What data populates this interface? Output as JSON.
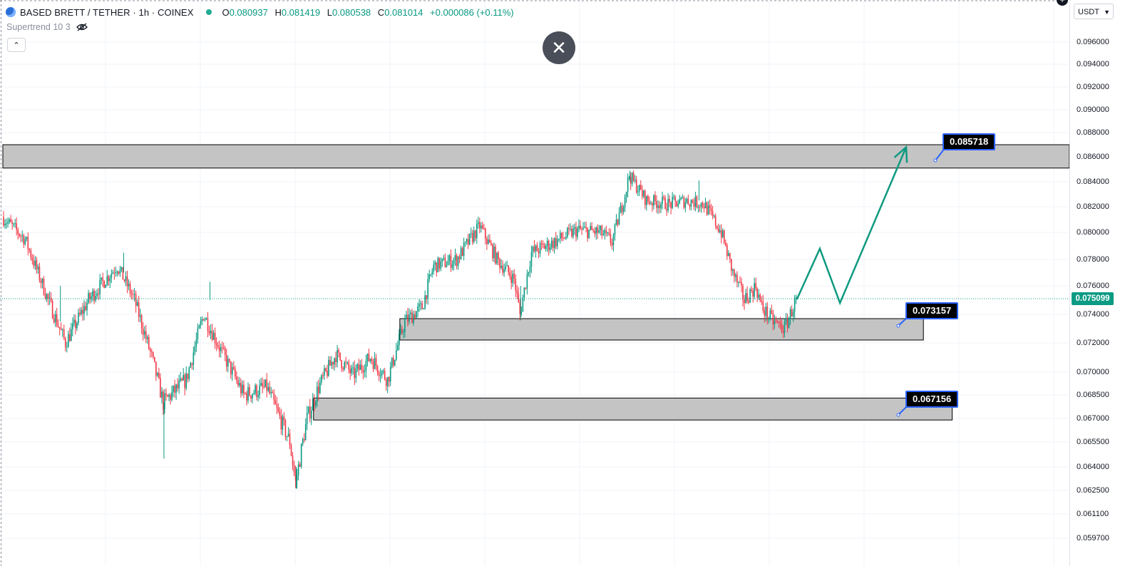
{
  "header": {
    "symbol_title": "BASED BRETT / TETHER · 1h · COINEX",
    "ohlc": {
      "open_key": "O",
      "open": "0.080937",
      "high_key": "H",
      "high": "0.081419",
      "low_key": "L",
      "low": "0.080538",
      "close_key": "C",
      "close": "0.081014",
      "change": "+0.000086 (+0.11%)"
    },
    "indicator": "Supertrend 10 3",
    "currency": "USDT"
  },
  "colors": {
    "up": "#089981",
    "down": "#f23645",
    "zone_fill": "#c4c4c4",
    "arrow": "#0e9a80",
    "label_border": "#2962ff",
    "last_price": "#0b9b84"
  },
  "icons": [
    "coin-logo-icon",
    "eye-off-icon",
    "chevron-up-icon",
    "close-icon",
    "chevron-down-icon",
    "plus-icon"
  ],
  "chart_data": {
    "type": "candlestick",
    "timeframe": "1h",
    "y_ticks": [
      "0.096000",
      "0.094000",
      "0.092000",
      "0.090000",
      "0.088000",
      "0.086000",
      "0.084000",
      "0.082000",
      "0.080000",
      "0.078000",
      "0.076000",
      "0.074000",
      "0.072000",
      "0.070000",
      "0.068500",
      "0.067000",
      "0.065500",
      "0.064000",
      "0.062500",
      "0.061100",
      "0.059700"
    ],
    "last_price": "0.075099",
    "grid": true,
    "zones": [
      {
        "label": "0.085718",
        "top": 0.087,
        "bottom": 0.0851,
        "x_start": 0,
        "x_end": 195
      },
      {
        "label": "0.073157",
        "top": 0.0737,
        "bottom": 0.0722,
        "x_start": 69,
        "x_end": 160
      },
      {
        "label": "0.067156",
        "top": 0.0683,
        "bottom": 0.0669,
        "x_start": 54,
        "x_end": 165
      }
    ],
    "projection": [
      {
        "x": 138,
        "price": 0.07505
      },
      {
        "x": 142,
        "price": 0.0788
      },
      {
        "x": 145.5,
        "price": 0.0748
      },
      {
        "x": 157,
        "price": 0.0868
      }
    ],
    "candle_anchors": [
      {
        "x": 0,
        "price": 0.0812
      },
      {
        "x": 4,
        "price": 0.0795
      },
      {
        "x": 8,
        "price": 0.075
      },
      {
        "x": 11,
        "price": 0.072
      },
      {
        "x": 15,
        "price": 0.075
      },
      {
        "x": 20,
        "price": 0.0775
      },
      {
        "x": 23,
        "price": 0.075
      },
      {
        "x": 26,
        "price": 0.071
      },
      {
        "x": 28,
        "price": 0.068
      },
      {
        "x": 32,
        "price": 0.0695
      },
      {
        "x": 35,
        "price": 0.074
      },
      {
        "x": 38,
        "price": 0.0715
      },
      {
        "x": 42,
        "price": 0.0685
      },
      {
        "x": 46,
        "price": 0.069
      },
      {
        "x": 50,
        "price": 0.0655
      },
      {
        "x": 51,
        "price": 0.063
      },
      {
        "x": 53,
        "price": 0.067
      },
      {
        "x": 55,
        "price": 0.069
      },
      {
        "x": 58,
        "price": 0.0712
      },
      {
        "x": 61,
        "price": 0.0698
      },
      {
        "x": 64,
        "price": 0.071
      },
      {
        "x": 67,
        "price": 0.0695
      },
      {
        "x": 70,
        "price": 0.0735
      },
      {
        "x": 73,
        "price": 0.0745
      },
      {
        "x": 75,
        "price": 0.0775
      },
      {
        "x": 79,
        "price": 0.078
      },
      {
        "x": 83,
        "price": 0.0805
      },
      {
        "x": 86,
        "price": 0.078
      },
      {
        "x": 89,
        "price": 0.0765
      },
      {
        "x": 90,
        "price": 0.074
      },
      {
        "x": 92,
        "price": 0.0785
      },
      {
        "x": 96,
        "price": 0.0793
      },
      {
        "x": 100,
        "price": 0.0802
      },
      {
        "x": 104,
        "price": 0.08
      },
      {
        "x": 106,
        "price": 0.0793
      },
      {
        "x": 108,
        "price": 0.0825
      },
      {
        "x": 109,
        "price": 0.0845
      },
      {
        "x": 112,
        "price": 0.0825
      },
      {
        "x": 116,
        "price": 0.0822
      },
      {
        "x": 119,
        "price": 0.0825
      },
      {
        "x": 122,
        "price": 0.0822
      },
      {
        "x": 125,
        "price": 0.08
      },
      {
        "x": 127,
        "price": 0.077
      },
      {
        "x": 129,
        "price": 0.075
      },
      {
        "x": 131,
        "price": 0.076
      },
      {
        "x": 132,
        "price": 0.0745
      },
      {
        "x": 134,
        "price": 0.0735
      },
      {
        "x": 136,
        "price": 0.073
      },
      {
        "x": 138,
        "price": 0.075
      }
    ]
  }
}
